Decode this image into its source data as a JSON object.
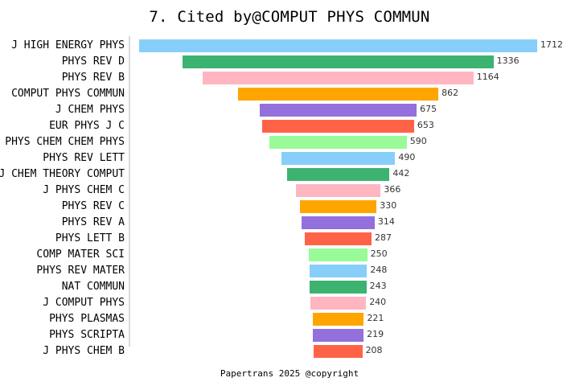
{
  "title": "7. Cited by@COMPUT PHYS COMMUN",
  "footer": "Papertrans 2025 @copyright",
  "chart_data": {
    "type": "bar",
    "orientation": "horizontal-centered (funnel)",
    "title": "7. Cited by@COMPUT PHYS COMMUN",
    "xlabel": "",
    "ylabel": "",
    "grid": false,
    "legend": null,
    "categories": [
      "J HIGH ENERGY PHYS",
      "PHYS REV D",
      "PHYS REV B",
      "COMPUT PHYS COMMUN",
      "J CHEM PHYS",
      "EUR PHYS J C",
      "PHYS CHEM CHEM PHYS",
      "PHYS REV LETT",
      "J CHEM THEORY COMPUT",
      "J PHYS CHEM C",
      "PHYS REV C",
      "PHYS REV A",
      "PHYS LETT B",
      "COMP MATER SCI",
      "PHYS REV MATER",
      "NAT COMMUN",
      "J COMPUT PHYS",
      "PHYS PLASMAS",
      "PHYS SCRIPTA",
      "J PHYS CHEM B"
    ],
    "values": [
      1712,
      1336,
      1164,
      862,
      675,
      653,
      590,
      490,
      442,
      366,
      330,
      314,
      287,
      250,
      248,
      243,
      240,
      221,
      219,
      208
    ],
    "colors": [
      "#87CEFA",
      "#3CB371",
      "#FFB6C1",
      "#FFA500",
      "#9370DB",
      "#FF6347",
      "#98FB98"
    ]
  }
}
